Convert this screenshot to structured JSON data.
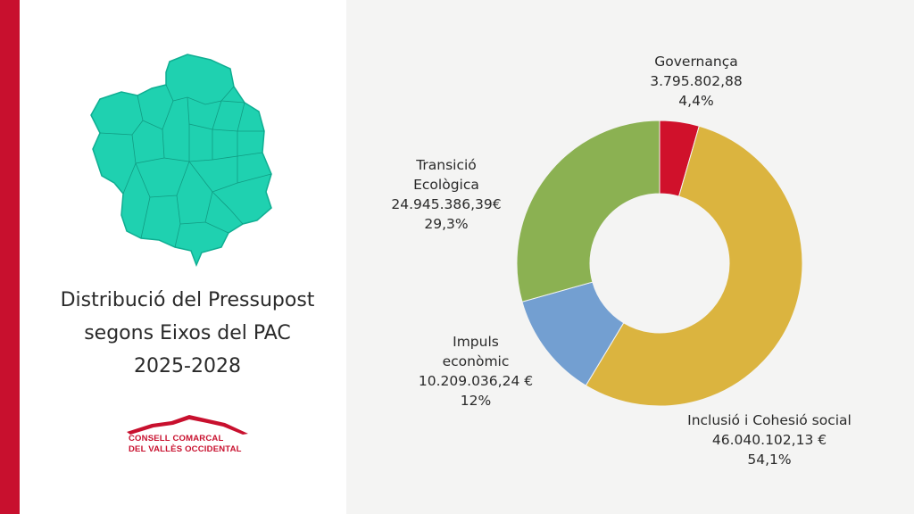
{
  "title_lines": [
    "Distribució del Pressupost",
    "segons Eixos del PAC",
    "2025-2028"
  ],
  "logo": {
    "line1": "CONSELL COMARCAL",
    "line2": "DEL VALLÈS OCCIDENTAL",
    "color": "#c8102e"
  },
  "colors": {
    "accent_bar": "#c8102e",
    "map_fill": "#1fd1b0"
  },
  "chart_data": {
    "type": "pie",
    "variant": "donut",
    "categories": [
      "Governança",
      "Inclusió i Cohesió social",
      "Impuls econòmic",
      "Transició Ecològica"
    ],
    "values": [
      3795802.88,
      46040102.13,
      10209036.24,
      24945386.39
    ],
    "percent_values": [
      4.4,
      54.1,
      12,
      29.3
    ],
    "value_labels": [
      "3.795.802,88",
      "46.040.102,13 €",
      "10.209.036,24 €",
      "24.945.386,39€"
    ],
    "percent_labels": [
      "4,4%",
      "54,1%",
      "12%",
      "29,3%"
    ],
    "label_lines": [
      [
        "Governança"
      ],
      [
        "Inclusió i Cohesió social"
      ],
      [
        "Impuls",
        "econòmic"
      ],
      [
        "Transició",
        "Ecològica"
      ]
    ],
    "colors": [
      "#d0112b",
      "#dbb43f",
      "#739fd1",
      "#8bb152"
    ]
  }
}
